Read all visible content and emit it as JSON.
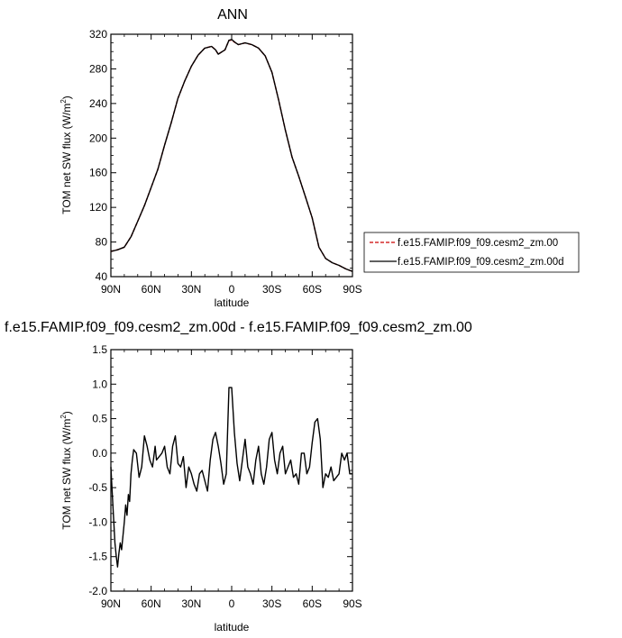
{
  "chart_data": [
    {
      "type": "line",
      "title": "ANN",
      "xlabel": "",
      "ylabel": "TOM net SW flux (W/m",
      "ylabel_sup": "2",
      "ylabel_close": ")",
      "ylim": [
        40,
        320
      ],
      "yticks": [
        "40",
        "80",
        "120",
        "160",
        "200",
        "240",
        "280",
        "320"
      ],
      "xlim": [
        90,
        -90
      ],
      "x_tick_values": [
        90,
        60,
        30,
        0,
        -30,
        -60,
        -90
      ],
      "xticks": [
        "90N",
        "60N",
        "30N",
        "0",
        "30S",
        "60S",
        "90S"
      ],
      "legend_position": "right",
      "x": [
        90,
        85,
        80,
        75,
        70,
        65,
        60,
        55,
        50,
        45,
        40,
        35,
        30,
        25,
        20,
        15,
        12,
        10,
        5,
        2,
        0,
        -3,
        -5,
        -10,
        -15,
        -20,
        -25,
        -30,
        -35,
        -40,
        -45,
        -50,
        -55,
        -60,
        -65,
        -70,
        -75,
        -80,
        -85,
        -90
      ],
      "series": [
        {
          "name": "f.e15.FAMIP.f09_f09.cesm2_zm.00",
          "color": "#cc0000",
          "dash": true,
          "values": [
            69,
            71,
            74,
            86,
            104,
            122,
            143,
            164,
            192,
            218,
            246,
            266,
            283,
            296,
            304,
            306,
            302,
            297,
            302,
            313,
            313,
            310,
            308,
            310,
            308,
            304,
            295,
            276,
            244,
            209,
            178,
            156,
            132,
            108,
            74,
            61,
            56,
            53,
            49,
            46
          ]
        },
        {
          "name": "f.e15.FAMIP.f09_f09.cesm2_zm.00d",
          "color": "#000000",
          "dash": false,
          "values": [
            69,
            71,
            74,
            86,
            104,
            122,
            143,
            164,
            192,
            218,
            246,
            266,
            283,
            296,
            304,
            306,
            302,
            297,
            302,
            313,
            314,
            310,
            308,
            310,
            308,
            304,
            295,
            276,
            244,
            209,
            178,
            156,
            132,
            108,
            74,
            61,
            56,
            53,
            49,
            46
          ]
        }
      ]
    },
    {
      "type": "line",
      "title": "f.e15.FAMIP.f09_f09.cesm2_zm.00d - f.e15.FAMIP.f09_f09.cesm2_zm.00",
      "xlabel": "latitude",
      "ylabel": "TOM net SW flux (W/m",
      "ylabel_sup": "2",
      "ylabel_close": ")",
      "ylim": [
        -2.0,
        1.5
      ],
      "yticks": [
        "-2.0",
        "-1.5",
        "-1.0",
        "-0.5",
        "0.0",
        "0.5",
        "1.0",
        "1.5"
      ],
      "xlim": [
        90,
        -90
      ],
      "x_tick_values": [
        90,
        60,
        30,
        0,
        -30,
        -60,
        -90
      ],
      "xticks": [
        "90N",
        "60N",
        "30N",
        "0",
        "30S",
        "60S",
        "90S"
      ],
      "x": [
        90,
        88.5,
        87,
        86,
        85,
        84,
        83,
        82,
        81,
        80,
        79,
        78,
        77,
        76,
        75,
        74,
        73,
        71,
        69,
        67,
        65,
        63,
        61,
        59,
        57,
        56,
        54,
        52,
        50,
        48,
        46,
        44,
        42,
        40,
        38,
        36,
        34,
        32,
        30,
        28,
        26,
        24,
        22,
        20,
        18,
        16,
        14,
        12,
        10,
        8,
        6,
        4,
        2,
        0,
        -2,
        -4,
        -6,
        -8,
        -10,
        -12,
        -14,
        -16,
        -18,
        -20,
        -22,
        -24,
        -26,
        -28,
        -30,
        -32,
        -34,
        -36,
        -38,
        -40,
        -42,
        -44,
        -46,
        -48,
        -50,
        -52,
        -54,
        -56,
        -58,
        -60,
        -62,
        -64,
        -66,
        -68,
        -70,
        -72,
        -74,
        -76,
        -78,
        -80,
        -82,
        -84,
        -86,
        -88,
        -90
      ],
      "series": [
        {
          "name": "",
          "color": "#000000",
          "dash": false,
          "values": [
            -0.2,
            -0.75,
            -1.3,
            -1.5,
            -1.65,
            -1.45,
            -1.3,
            -1.4,
            -1.2,
            -1.0,
            -0.75,
            -0.9,
            -0.6,
            -0.7,
            -0.3,
            -0.1,
            0.05,
            0.0,
            -0.35,
            -0.2,
            0.25,
            0.1,
            -0.1,
            -0.2,
            0.1,
            -0.1,
            -0.05,
            0.0,
            0.1,
            -0.2,
            -0.3,
            0.1,
            0.25,
            -0.15,
            -0.2,
            -0.05,
            -0.5,
            -0.2,
            -0.3,
            -0.45,
            -0.55,
            -0.3,
            -0.25,
            -0.4,
            -0.55,
            -0.1,
            0.2,
            0.3,
            0.1,
            -0.15,
            -0.45,
            -0.3,
            0.95,
            0.95,
            0.3,
            -0.15,
            -0.4,
            -0.1,
            0.2,
            -0.2,
            -0.3,
            -0.45,
            -0.1,
            0.1,
            -0.3,
            -0.45,
            -0.2,
            0.2,
            0.3,
            -0.1,
            -0.3,
            0.0,
            0.1,
            -0.3,
            -0.2,
            -0.1,
            -0.35,
            -0.3,
            -0.45,
            0.0,
            0.0,
            -0.3,
            -0.2,
            0.15,
            0.45,
            0.5,
            0.2,
            -0.5,
            -0.3,
            -0.35,
            -0.2,
            -0.4,
            -0.35,
            -0.3,
            0.0,
            -0.1,
            0.0,
            -0.3,
            -0.3
          ]
        }
      ]
    }
  ]
}
